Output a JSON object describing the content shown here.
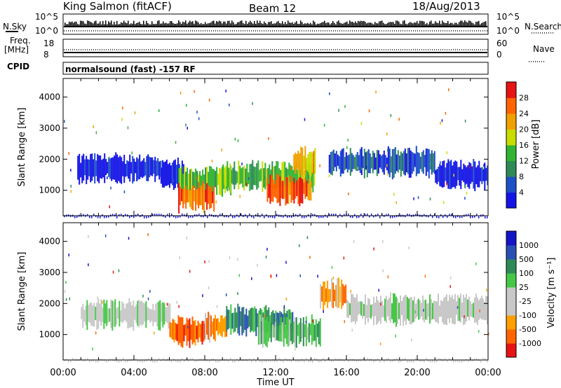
{
  "header": {
    "station": "King Salmon (fitACF)",
    "beam": "Beam 12",
    "date": "18/Aug/2013"
  },
  "housekeeping": {
    "nsky_label": "N.Sky",
    "nsearch_label": "N.Search",
    "freq_label": "Freq.",
    "freq_unit": "[MHz]",
    "nave_label": "Nave",
    "cpid_label": "CPID",
    "cpid_text": "normalsound (fast) -157 RF",
    "noise_ticks": [
      "10^5",
      "10^0"
    ],
    "freq_ticks": [
      "18",
      "8"
    ],
    "nave_ticks": [
      "60",
      "0"
    ]
  },
  "colors": {
    "power_scale": [
      "#1414e6",
      "#1e50c8",
      "#2e8b57",
      "#32b432",
      "#c8dc00",
      "#f0a000",
      "#ff6400",
      "#e61414"
    ],
    "velocity_scale": [
      "#1414c8",
      "#2850b4",
      "#2e8b57",
      "#46c846",
      "#c8c8c8",
      "#c8c8c8",
      "#ffa000",
      "#ff6400",
      "#e61414"
    ]
  },
  "chart_data": [
    {
      "type": "heatmap",
      "name": "power",
      "ylabel": "Slant Range [km]",
      "xlabel": "Time UT",
      "x_ticks": [
        "00:00",
        "04:00",
        "08:00",
        "12:00",
        "16:00",
        "20:00",
        "00:00"
      ],
      "x_range_hours": [
        0,
        24
      ],
      "y_ticks": [
        1000,
        2000,
        3000,
        4000
      ],
      "ylim": [
        180,
        4600
      ],
      "colorbar": {
        "label": "Power [dB]",
        "ticks": [
          "4",
          "8",
          "12",
          "16",
          "20",
          "24",
          "28"
        ]
      },
      "echo_bands": [
        {
          "t_start": 0.8,
          "t_end": 5.5,
          "range_center": 1700,
          "level": 0
        },
        {
          "t_start": 5.5,
          "t_end": 6.8,
          "range_center": 1500,
          "level": 0
        },
        {
          "t_start": 6.5,
          "t_end": 9.5,
          "range_center": 1300,
          "level": 3
        },
        {
          "t_start": 6.5,
          "t_end": 8.5,
          "range_center": 780,
          "level": 6
        },
        {
          "t_start": 9.0,
          "t_end": 14.2,
          "range_center": 1450,
          "level": 3
        },
        {
          "t_start": 11.5,
          "t_end": 14.0,
          "range_center": 1000,
          "level": 6
        },
        {
          "t_start": 13.0,
          "t_end": 14.2,
          "range_center": 1900,
          "level": 5
        },
        {
          "t_start": 15.0,
          "t_end": 21.0,
          "range_center": 1900,
          "level": 1
        },
        {
          "t_start": 21.0,
          "t_end": 24.0,
          "range_center": 1500,
          "level": 0
        }
      ]
    },
    {
      "type": "heatmap",
      "name": "velocity",
      "ylabel": "Slant Range [km]",
      "xlabel": "Time UT",
      "x_ticks": [
        "00:00",
        "04:00",
        "08:00",
        "12:00",
        "16:00",
        "20:00",
        "00:00"
      ],
      "x_range_hours": [
        0,
        24
      ],
      "y_ticks": [
        1000,
        2000,
        3000,
        4000
      ],
      "ylim": [
        180,
        4600
      ],
      "colorbar": {
        "label": "Velocity [m s⁻¹]",
        "ticks": [
          "1000",
          "500",
          "100",
          "25",
          "-25",
          "-100",
          "-500",
          "-1000"
        ]
      },
      "echo_bands": [
        {
          "t_start": 1.0,
          "t_end": 6.0,
          "range_center": 1650,
          "level": 4
        },
        {
          "t_start": 6.0,
          "t_end": 8.0,
          "range_center": 1100,
          "level": 7
        },
        {
          "t_start": 8.0,
          "t_end": 9.2,
          "range_center": 1250,
          "level": 6
        },
        {
          "t_start": 9.2,
          "t_end": 13.0,
          "range_center": 1450,
          "level": 2
        },
        {
          "t_start": 11.0,
          "t_end": 14.5,
          "range_center": 1100,
          "level": 3
        },
        {
          "t_start": 14.5,
          "t_end": 16.0,
          "range_center": 2300,
          "level": 6
        },
        {
          "t_start": 16.0,
          "t_end": 24.0,
          "range_center": 1800,
          "level": 4
        }
      ]
    }
  ]
}
